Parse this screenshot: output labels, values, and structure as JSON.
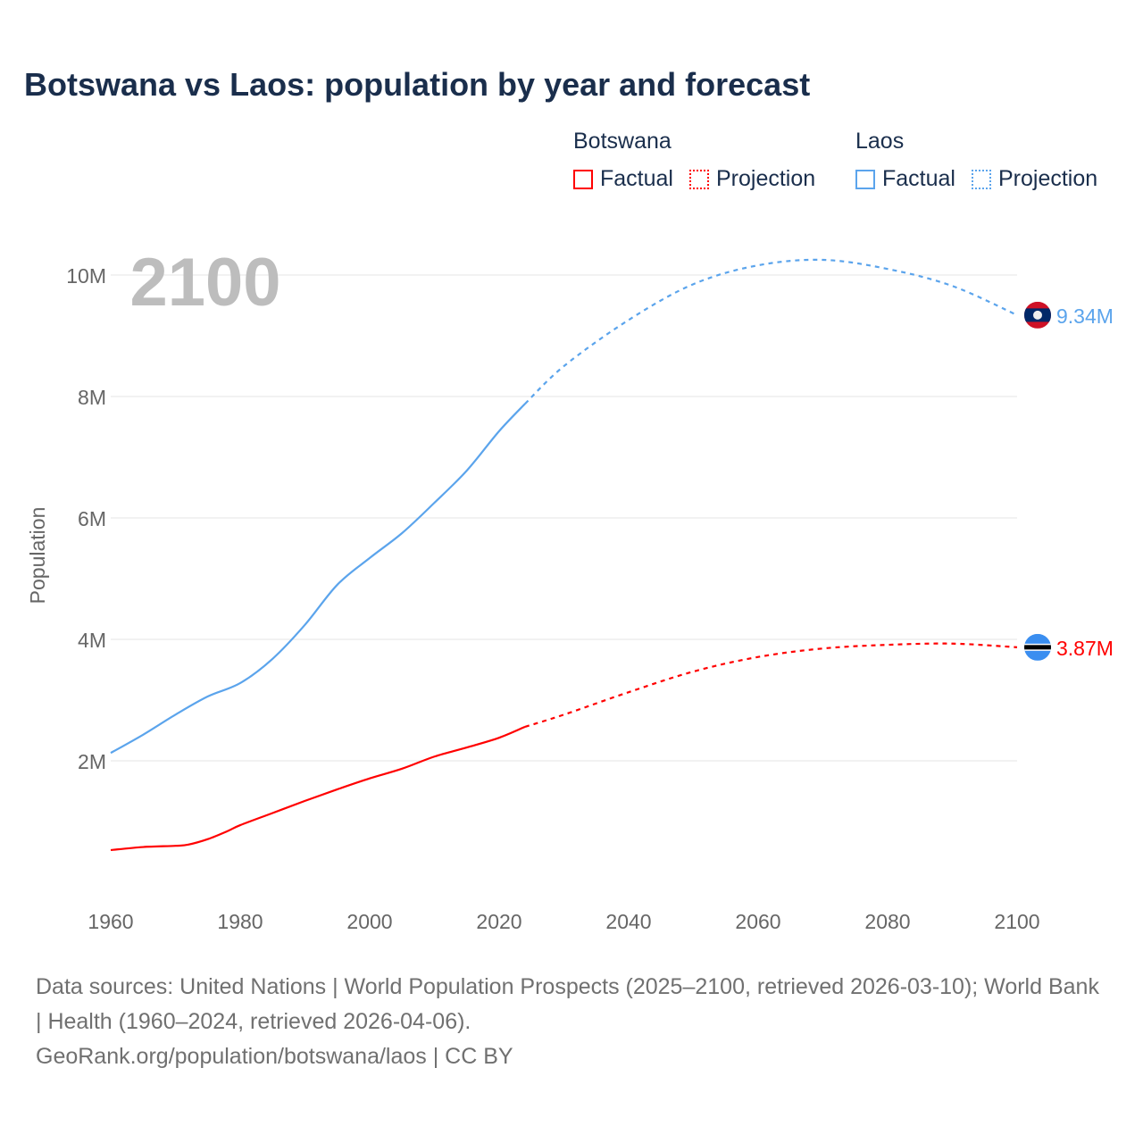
{
  "title": "Botswana vs Laos: population by year and forecast",
  "legend": {
    "groups": [
      {
        "name": "Botswana",
        "factual": "Factual",
        "projection": "Projection",
        "color": "#ff0000"
      },
      {
        "name": "Laos",
        "factual": "Factual",
        "projection": "Projection",
        "color": "#5ba4ec"
      }
    ]
  },
  "year_label": "2100",
  "chart_data": {
    "type": "line",
    "title": "Botswana vs Laos: population by year and forecast",
    "xlabel": "",
    "ylabel": "Population",
    "xlim": [
      1960,
      2100
    ],
    "ylim": [
      0,
      10500000
    ],
    "x_ticks": [
      "1960",
      "1980",
      "2000",
      "2020",
      "2040",
      "2060",
      "2080",
      "2100"
    ],
    "y_ticks": [
      {
        "value": 2000000,
        "label": "2M"
      },
      {
        "value": 4000000,
        "label": "4M"
      },
      {
        "value": 6000000,
        "label": "6M"
      },
      {
        "value": 8000000,
        "label": "8M"
      },
      {
        "value": 10000000,
        "label": "10M"
      }
    ],
    "grid": true,
    "series": [
      {
        "name": "Botswana",
        "color": "#ff0000",
        "flag": "botswana-flag",
        "end_label": "3.87M",
        "factual": {
          "x": [
            1960,
            1965,
            1970,
            1972,
            1975,
            1978,
            1980,
            1985,
            1990,
            1995,
            2000,
            2005,
            2010,
            2015,
            2020,
            2024
          ],
          "y": [
            0.53,
            0.58,
            0.6,
            0.62,
            0.71,
            0.84,
            0.94,
            1.14,
            1.34,
            1.53,
            1.71,
            1.87,
            2.07,
            2.22,
            2.38,
            2.56
          ]
        },
        "projection": {
          "x": [
            2024,
            2030,
            2040,
            2050,
            2060,
            2070,
            2080,
            2090,
            2100
          ],
          "y": [
            2.56,
            2.76,
            3.13,
            3.47,
            3.71,
            3.85,
            3.91,
            3.93,
            3.87
          ]
        }
      },
      {
        "name": "Laos",
        "color": "#5ba4ec",
        "flag": "laos-flag",
        "end_label": "9.34M",
        "factual": {
          "x": [
            1960,
            1965,
            1970,
            1975,
            1980,
            1985,
            1990,
            1995,
            2000,
            2005,
            2010,
            2015,
            2020,
            2024
          ],
          "y": [
            2.13,
            2.43,
            2.76,
            3.06,
            3.28,
            3.68,
            4.24,
            4.9,
            5.34,
            5.75,
            6.25,
            6.78,
            7.43,
            7.88
          ]
        },
        "projection": {
          "x": [
            2024,
            2030,
            2040,
            2050,
            2060,
            2070,
            2080,
            2090,
            2100
          ],
          "y": [
            7.88,
            8.5,
            9.26,
            9.85,
            10.16,
            10.25,
            10.1,
            9.82,
            9.34
          ]
        }
      }
    ],
    "y_unit": "millions"
  },
  "footer": {
    "sources": "Data sources: United Nations | World Population Prospects (2025–2100, retrieved 2026-03-10); World Bank | Health (1960–2024, retrieved 2026-04-06).",
    "link": "GeoRank.org/population/botswana/laos | CC BY"
  }
}
